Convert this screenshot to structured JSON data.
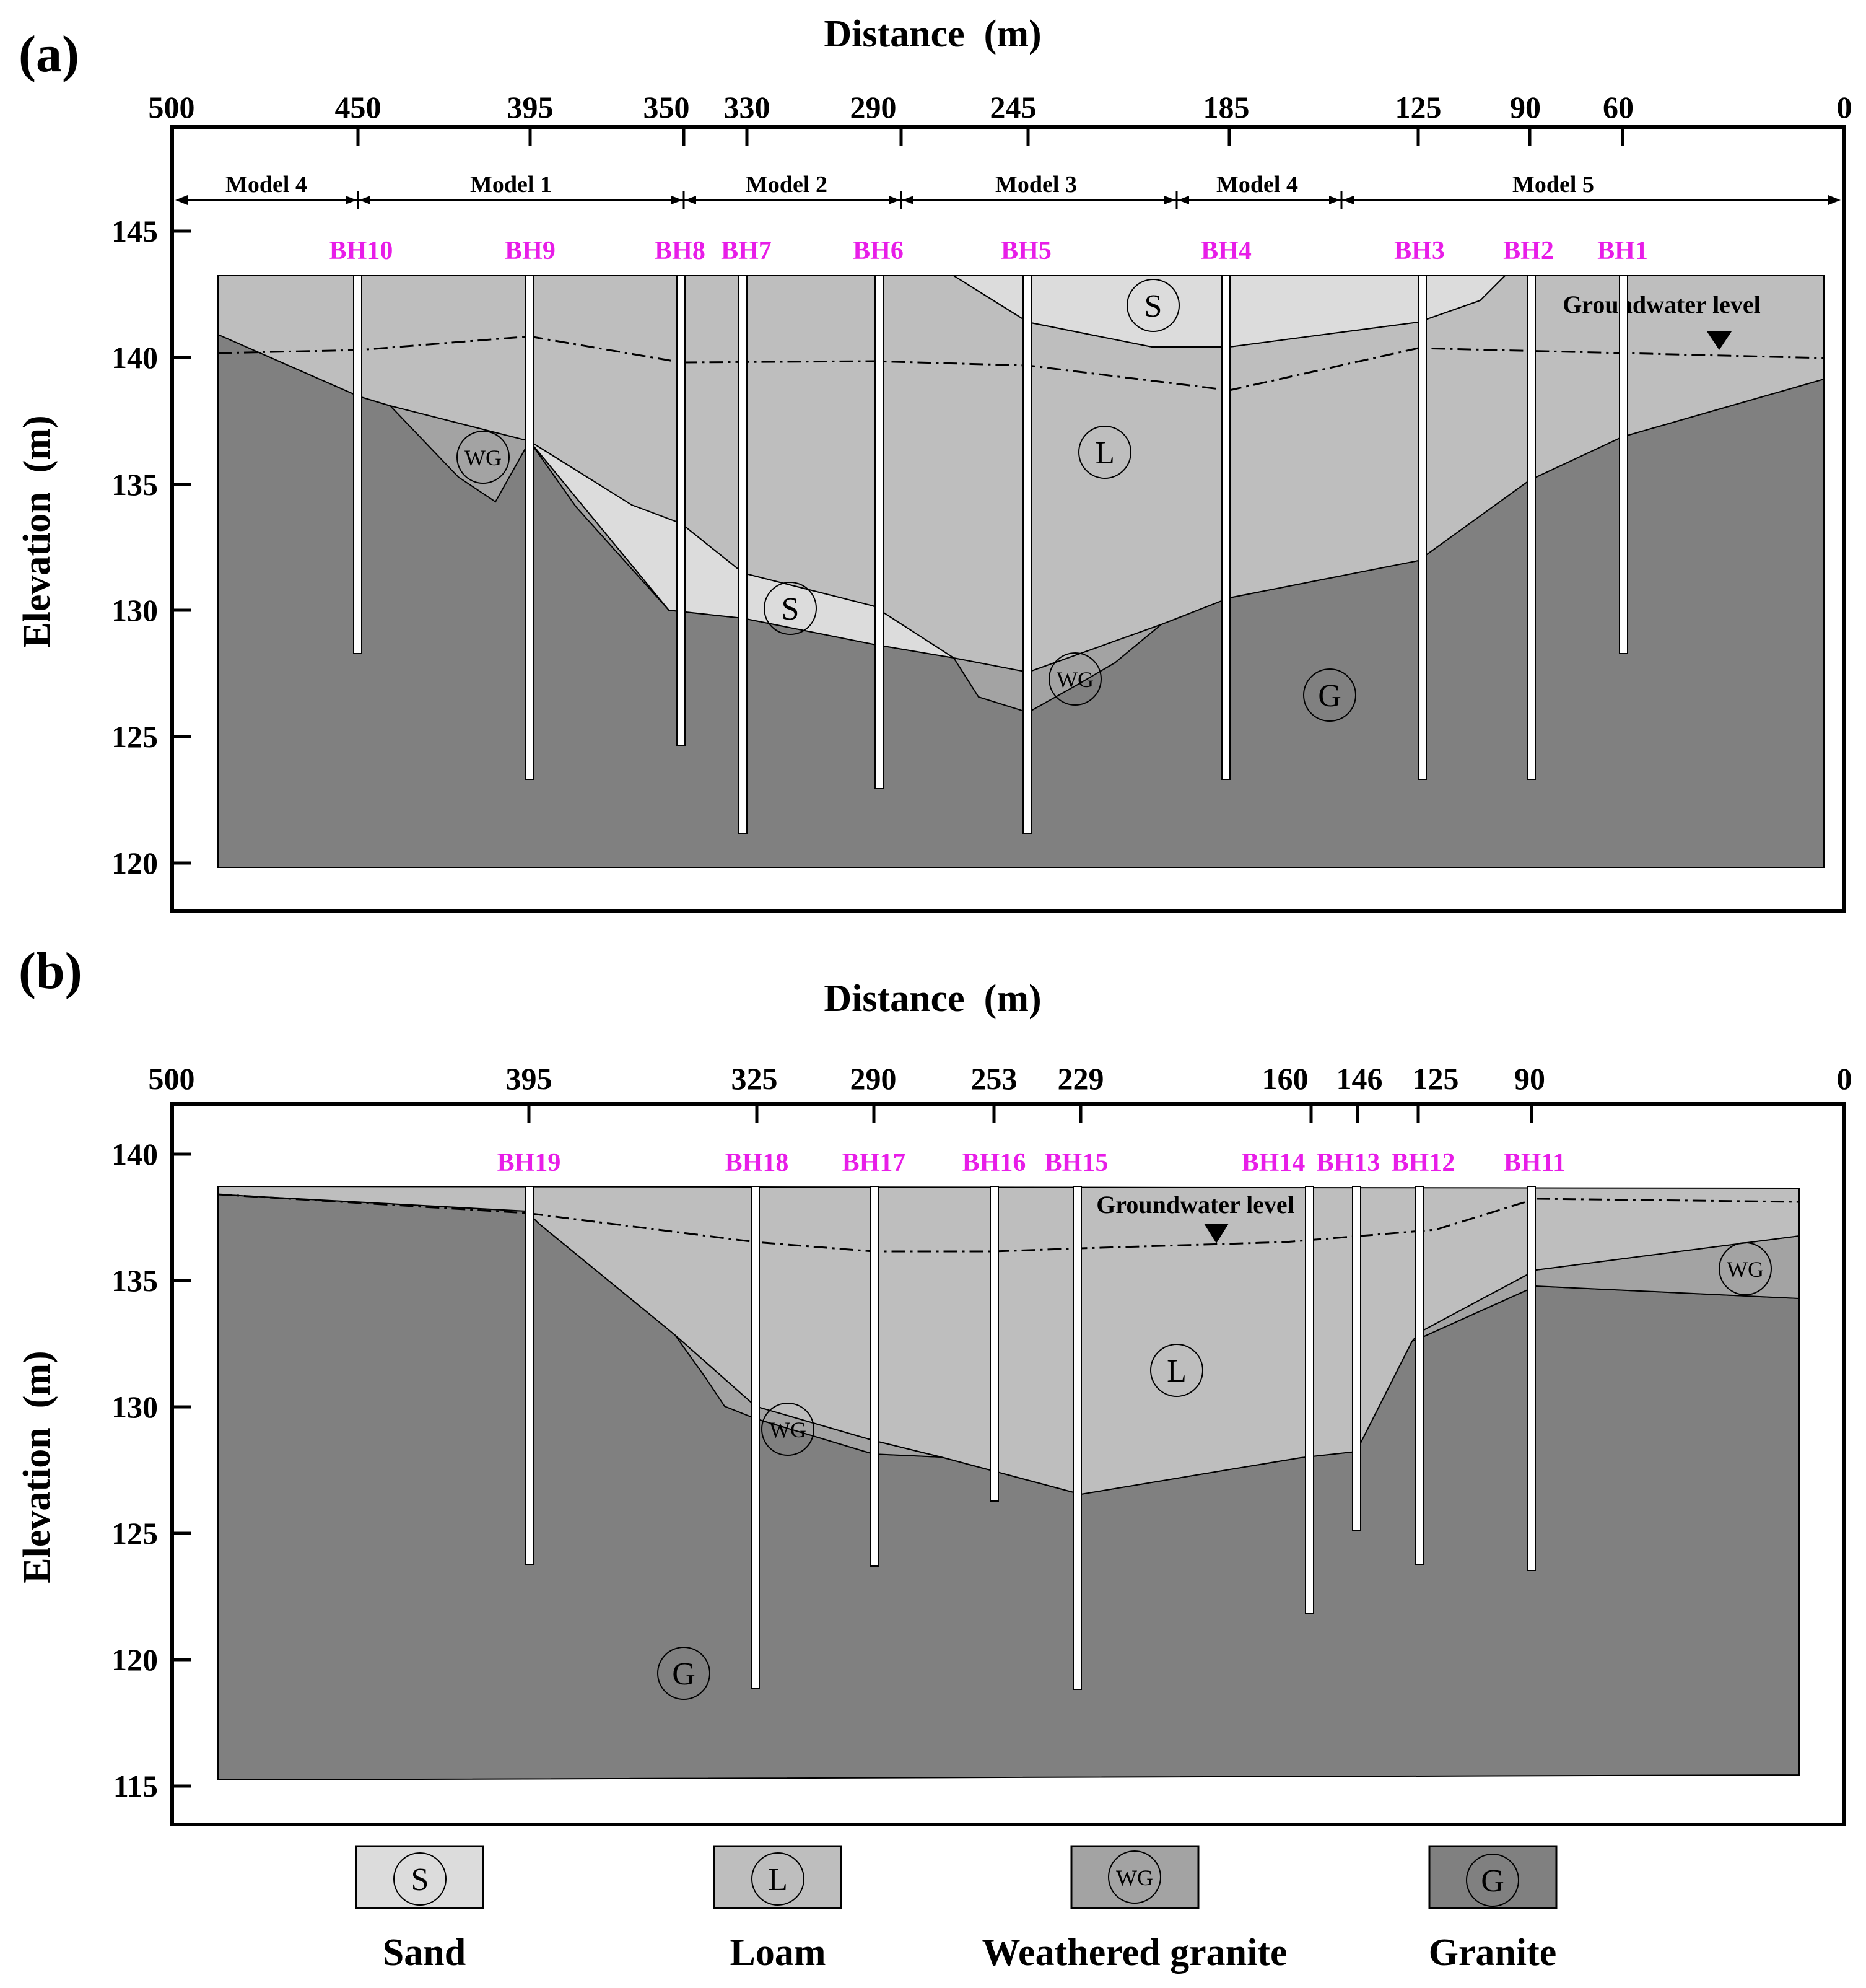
{
  "colors": {
    "sand": "#dcdcdc",
    "loam": "#bebebe",
    "weathered_granite": "#a3a3a3",
    "granite": "#808080",
    "borehole_label": "#e81de8",
    "frame": "#000000"
  },
  "panel_a": {
    "label": "(a)",
    "x_title": "Distance  (m)",
    "y_title": "Elevation  (m)",
    "x_ticks": [
      "500",
      "450",
      "395",
      "350",
      "330",
      "290",
      "245",
      "185",
      "125",
      "90",
      "60",
      "0"
    ],
    "y_ticks": [
      "145",
      "140",
      "135",
      "130",
      "125",
      "120"
    ],
    "models": [
      "Model 4",
      "Model 1",
      "Model 2",
      "Model 3",
      "Model 4",
      "Model 5"
    ],
    "boreholes": [
      "BH10",
      "BH9",
      "BH8",
      "BH7",
      "BH6",
      "BH5",
      "BH4",
      "BH3",
      "BH2",
      "BH1"
    ],
    "groundwater_label": "Groundwater level",
    "layer_marks": {
      "sand_1": "S",
      "sand_2": "S",
      "loam": "L",
      "wg_1": "WG",
      "wg_2": "WG",
      "granite": "G"
    }
  },
  "panel_b": {
    "label": "(b)",
    "x_title": "Distance  (m)",
    "y_title": "Elevation  (m)",
    "x_ticks": [
      "500",
      "395",
      "325",
      "290",
      "253",
      "229",
      "160",
      "146",
      "125",
      "90",
      "0"
    ],
    "y_ticks": [
      "140",
      "135",
      "130",
      "125",
      "120",
      "115"
    ],
    "boreholes": [
      "BH19",
      "BH18",
      "BH17",
      "BH16",
      "BH15",
      "BH14",
      "BH13",
      "BH12",
      "BH11"
    ],
    "groundwater_label": "Groundwater level",
    "layer_marks": {
      "loam": "L",
      "wg_1": "WG",
      "wg_2": "WG",
      "granite": "G"
    }
  },
  "legend": [
    {
      "symbol": "S",
      "name": "Sand"
    },
    {
      "symbol": "L",
      "name": "Loam"
    },
    {
      "symbol": "WG",
      "name": "Weathered granite"
    },
    {
      "symbol": "G",
      "name": "Granite"
    }
  ]
}
